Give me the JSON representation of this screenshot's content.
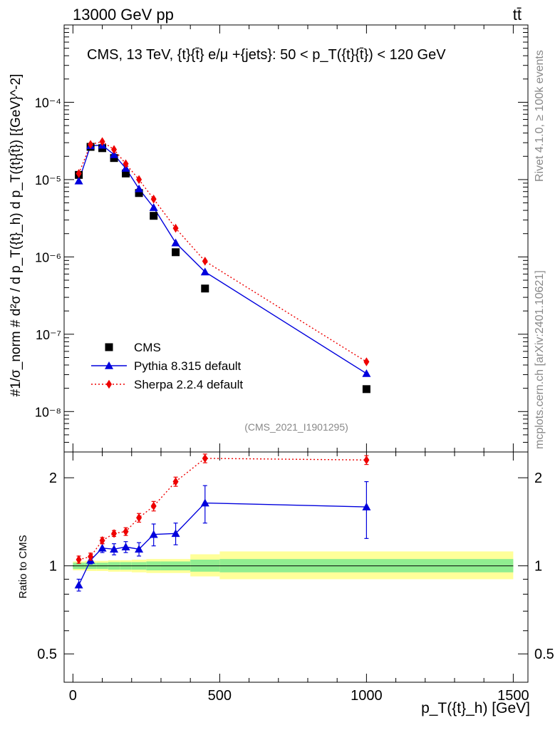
{
  "header": {
    "left": "13000 GeV pp",
    "right": "tt̄"
  },
  "side": {
    "rivet": "Rivet 4.1.0, ≥ 100k events",
    "mcplots": "mcplots.cern.ch [arXiv:2401.10621]"
  },
  "colors": {
    "cms": "#000000",
    "pythia": "#0000dd",
    "sherpa": "#ee0000",
    "band_inner": "#90ee90",
    "band_outer": "#ffff99"
  },
  "chart_data": [
    {
      "type": "line",
      "panel": "main",
      "title": "CMS, 13 TeV, {t}{t̄} e/μ +{jets}: 50 <  p_T({t}{t̄}) < 120 GeV",
      "watermark": "(CMS_2021_I1901295)",
      "ylabel": "#1/σ_norm # d²σ / d p_T({t}_h) d p_T({t}{t̄}) [{GeV}^-2]",
      "yscale": "log",
      "xlim": [
        -30,
        1550
      ],
      "ylim": [
        3e-09,
        0.001
      ],
      "yticks": [
        {
          "value": 1e-08,
          "label": "10⁻⁸"
        },
        {
          "value": 1e-07,
          "label": "10⁻⁷"
        },
        {
          "value": 1e-06,
          "label": "10⁻⁶"
        },
        {
          "value": 1e-05,
          "label": "10⁻⁵"
        },
        {
          "value": 0.0001,
          "label": "10⁻⁴"
        }
      ],
      "x": [
        20,
        60,
        100,
        140,
        180,
        225,
        275,
        350,
        450,
        1000
      ],
      "series": [
        {
          "name": "CMS",
          "style": "square",
          "values": [
            1.15e-05,
            2.65e-05,
            2.55e-05,
            1.9e-05,
            1.2e-05,
            6.7e-06,
            3.4e-06,
            1.15e-06,
            3.9e-07,
            1.95e-08
          ]
        },
        {
          "name": "Pythia 8.315 default",
          "style": "triangle-solid",
          "values": [
            9.6e-06,
            2.75e-05,
            2.78e-05,
            2.1e-05,
            1.4e-05,
            7.6e-06,
            4.35e-06,
            1.52e-06,
            6.4e-07,
            3.1e-08
          ]
        },
        {
          "name": "Sherpa 2.2.4 default",
          "style": "diamond-dotted",
          "values": [
            1.2e-05,
            2.85e-05,
            3.1e-05,
            2.45e-05,
            1.6e-05,
            1e-05,
            5.6e-06,
            2.35e-06,
            8.8e-07,
            4.4e-08
          ]
        }
      ],
      "legend": [
        "CMS",
        "Pythia 8.315 default",
        "Sherpa 2.2.4 default"
      ]
    },
    {
      "type": "line",
      "panel": "ratio",
      "ylabel": "Ratio to CMS",
      "xlabel": "p_T({t}_h) [GeV]",
      "yscale": "log",
      "xlim": [
        -30,
        1550
      ],
      "ylim": [
        0.4,
        2.45
      ],
      "xticks": [
        0,
        500,
        1000,
        1500
      ],
      "yticks": [
        0.5,
        1,
        2
      ],
      "bins": [
        0,
        40,
        80,
        120,
        160,
        200,
        250,
        300,
        400,
        500,
        1500
      ],
      "band_inner": [
        [
          0.975,
          1.025
        ],
        [
          0.975,
          1.025
        ],
        [
          0.975,
          1.025
        ],
        [
          0.97,
          1.03
        ],
        [
          0.97,
          1.03
        ],
        [
          0.97,
          1.03
        ],
        [
          0.965,
          1.035
        ],
        [
          0.965,
          1.035
        ],
        [
          0.955,
          1.05
        ],
        [
          0.95,
          1.055
        ]
      ],
      "band_outer": [
        [
          0.965,
          1.035
        ],
        [
          0.96,
          1.04
        ],
        [
          0.96,
          1.04
        ],
        [
          0.955,
          1.045
        ],
        [
          0.955,
          1.045
        ],
        [
          0.95,
          1.05
        ],
        [
          0.945,
          1.055
        ],
        [
          0.945,
          1.055
        ],
        [
          0.92,
          1.095
        ],
        [
          0.9,
          1.12
        ]
      ],
      "x": [
        20,
        60,
        100,
        140,
        180,
        225,
        275,
        350,
        450,
        1000
      ],
      "series": [
        {
          "name": "Pythia 8.315 default",
          "values": [
            0.86,
            1.045,
            1.15,
            1.14,
            1.16,
            1.14,
            1.28,
            1.29,
            1.64,
            1.59
          ],
          "err": [
            0.04,
            0.03,
            0.04,
            0.05,
            0.05,
            0.06,
            0.11,
            0.11,
            0.24,
            0.35
          ]
        },
        {
          "name": "Sherpa 2.2.4 default",
          "values": [
            1.05,
            1.075,
            1.22,
            1.29,
            1.31,
            1.46,
            1.6,
            1.94,
            2.33,
            2.3
          ],
          "err": [
            0.03,
            0.03,
            0.03,
            0.03,
            0.04,
            0.05,
            0.06,
            0.07,
            0.08,
            0.08
          ]
        }
      ]
    }
  ]
}
